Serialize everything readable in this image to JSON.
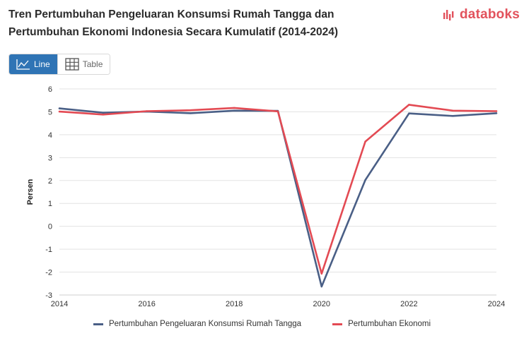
{
  "title": {
    "line1": "Tren Pertumbuhan Pengeluaran Konsumsi Rumah Tangga dan",
    "line2": "Pertumbuhan Ekonomi Indonesia Secara Kumulatif (2014-2024)"
  },
  "brand": {
    "name": "databoks",
    "icon": "bar-mark-icon",
    "color": "#e2525c"
  },
  "tabs": [
    {
      "label": "Line",
      "icon": "line-chart-icon",
      "active": true
    },
    {
      "label": "Table",
      "icon": "table-grid-icon",
      "active": false
    }
  ],
  "chart_data": {
    "type": "line",
    "ylabel": "Persen",
    "xlabel": "",
    "ylim": [
      -3,
      6
    ],
    "yticks": [
      6,
      5,
      4,
      3,
      2,
      1,
      0,
      -1,
      -2,
      -3
    ],
    "xlim": [
      2014,
      2024
    ],
    "xticks": [
      2014,
      2016,
      2018,
      2020,
      2022,
      2024
    ],
    "grid": true,
    "legend_position": "bottom",
    "x": [
      2014,
      2015,
      2016,
      2017,
      2018,
      2019,
      2020,
      2021,
      2022,
      2023,
      2024
    ],
    "series": [
      {
        "name": "Pertumbuhan Pengeluaran Konsumsi Rumah Tangga",
        "color": "#4a5f86",
        "values": [
          5.15,
          4.96,
          5.01,
          4.94,
          5.05,
          5.04,
          -2.63,
          2.02,
          4.93,
          4.82,
          4.94
        ]
      },
      {
        "name": "Pertumbuhan Ekonomi",
        "color": "#e34a53",
        "values": [
          5.01,
          4.88,
          5.03,
          5.07,
          5.17,
          5.02,
          -2.07,
          3.7,
          5.31,
          5.05,
          5.03
        ]
      }
    ]
  }
}
